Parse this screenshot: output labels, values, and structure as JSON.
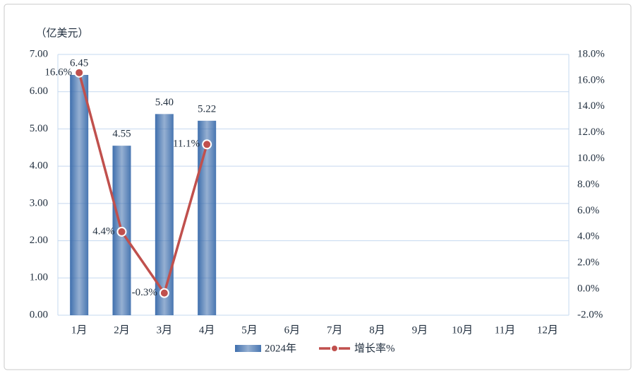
{
  "chart_data": {
    "type": "bar",
    "y_label": "（亿美元）",
    "categories": [
      "1月",
      "2月",
      "3月",
      "4月",
      "5月",
      "6月",
      "7月",
      "8月",
      "9月",
      "10月",
      "11月",
      "12月"
    ],
    "series": [
      {
        "name": "2024年",
        "type": "bar",
        "color": "#3f6fad",
        "values": [
          6.45,
          4.55,
          5.4,
          5.22,
          null,
          null,
          null,
          null,
          null,
          null,
          null,
          null
        ],
        "value_labels": [
          "6.45",
          "4.55",
          "5.40",
          "5.22",
          null,
          null,
          null,
          null,
          null,
          null,
          null,
          null
        ]
      },
      {
        "name": "增长率%",
        "type": "line",
        "axis": "y2",
        "color": "#c0504d",
        "values": [
          16.6,
          4.4,
          -0.3,
          11.1,
          null,
          null,
          null,
          null,
          null,
          null,
          null,
          null
        ],
        "value_labels": [
          "16.6%",
          "4.4%",
          "-0.3%",
          "11.1%",
          null,
          null,
          null,
          null,
          null,
          null,
          null,
          null
        ]
      }
    ],
    "ylim": [
      0,
      7
    ],
    "yticks": [
      {
        "value": 0,
        "label": "0.00"
      },
      {
        "value": 1,
        "label": "1.00"
      },
      {
        "value": 2,
        "label": "2.00"
      },
      {
        "value": 3,
        "label": "3.00"
      },
      {
        "value": 4,
        "label": "4.00"
      },
      {
        "value": 5,
        "label": "5.00"
      },
      {
        "value": 6,
        "label": "6.00"
      },
      {
        "value": 7,
        "label": "7.00"
      }
    ],
    "y2lim": [
      -2,
      18
    ],
    "y2ticks": [
      {
        "value": -2,
        "label": "-2.0%"
      },
      {
        "value": 0,
        "label": "0.0%"
      },
      {
        "value": 2,
        "label": "2.0%"
      },
      {
        "value": 4,
        "label": "4.0%"
      },
      {
        "value": 6,
        "label": "6.0%"
      },
      {
        "value": 8,
        "label": "8.0%"
      },
      {
        "value": 10,
        "label": "10.0%"
      },
      {
        "value": 12,
        "label": "12.0%"
      },
      {
        "value": 14,
        "label": "14.0%"
      },
      {
        "value": 16,
        "label": "16.0%"
      },
      {
        "value": 18,
        "label": "18.0%"
      }
    ],
    "grid": true,
    "legend": "bottom"
  }
}
